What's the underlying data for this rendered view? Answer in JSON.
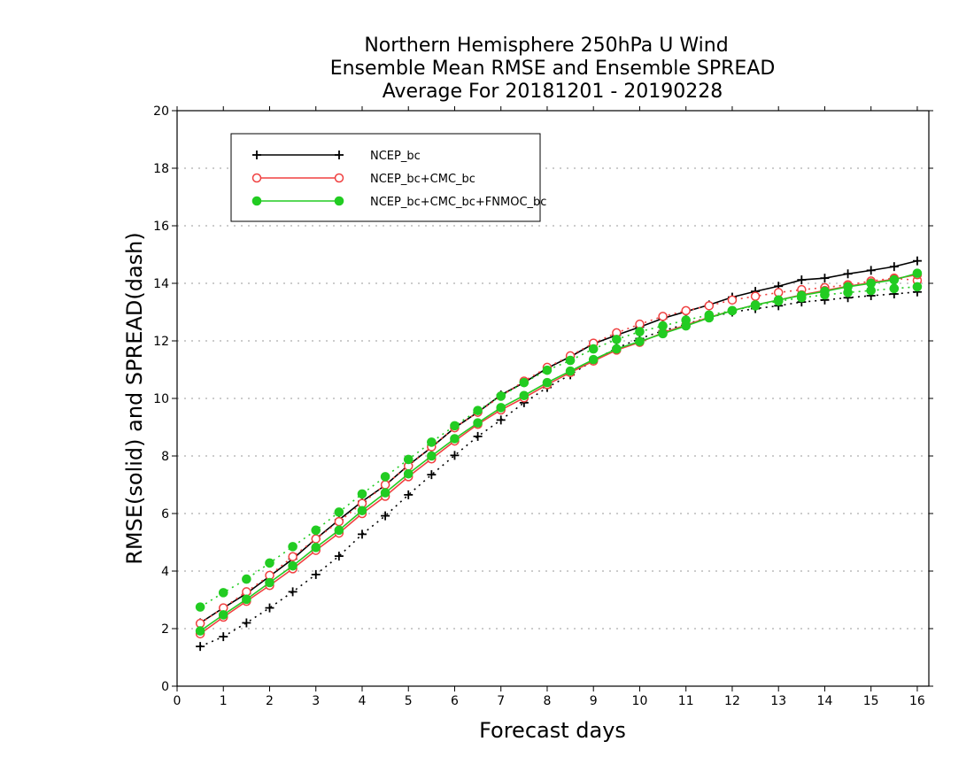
{
  "chart_data": {
    "type": "line",
    "title": "Northern Hemisphere 250hPa U Wind",
    "subtitle_lines": [
      "Ensemble Mean RMSE and Ensemble SPREAD",
      "Average For 20181201 - 20190228"
    ],
    "xlabel": "Forecast days",
    "ylabel": "RMSE(solid) and SPREAD(dash)",
    "xlim": [
      0,
      16.25
    ],
    "ylim": [
      0,
      20
    ],
    "x_ticks": [
      0,
      1,
      2,
      3,
      4,
      5,
      6,
      7,
      8,
      9,
      10,
      11,
      12,
      13,
      14,
      15,
      16
    ],
    "y_ticks": [
      0,
      2,
      4,
      6,
      8,
      10,
      12,
      14,
      16,
      18,
      20
    ],
    "grid": true,
    "legend_position": "top-left",
    "x": [
      0.5,
      1,
      1.5,
      2,
      2.5,
      3,
      3.5,
      4,
      4.5,
      5,
      5.5,
      6,
      6.5,
      7,
      7.5,
      8,
      8.5,
      9,
      9.5,
      10,
      10.5,
      11,
      11.5,
      12,
      12.5,
      13,
      13.5,
      14,
      14.5,
      15,
      15.5,
      16
    ],
    "series": [
      {
        "name": "NCEP_bc",
        "color": "#000000",
        "marker": "plus",
        "rmse": [
          2.2,
          2.72,
          3.22,
          3.82,
          4.42,
          5.12,
          5.78,
          6.42,
          6.98,
          7.68,
          8.3,
          8.98,
          9.52,
          10.12,
          10.55,
          11.05,
          11.45,
          11.9,
          12.2,
          12.48,
          12.78,
          13.02,
          13.25,
          13.52,
          13.72,
          13.9,
          14.12,
          14.18,
          14.33,
          14.45,
          14.58,
          14.78
        ],
        "spread": [
          1.38,
          1.72,
          2.2,
          2.72,
          3.28,
          3.88,
          4.52,
          5.28,
          5.92,
          6.65,
          7.35,
          8.02,
          8.68,
          9.25,
          9.85,
          10.38,
          10.82,
          11.32,
          11.75,
          12.08,
          12.35,
          12.58,
          12.82,
          13.0,
          13.12,
          13.22,
          13.35,
          13.42,
          13.5,
          13.57,
          13.63,
          13.7
        ]
      },
      {
        "name": "NCEP_bc+CMC_bc",
        "color": "#f04040",
        "marker": "open-circle",
        "rmse": [
          1.82,
          2.4,
          2.95,
          3.5,
          4.08,
          4.72,
          5.32,
          6.0,
          6.6,
          7.28,
          7.9,
          8.52,
          9.1,
          9.6,
          10.02,
          10.48,
          10.9,
          11.3,
          11.68,
          11.95,
          12.28,
          12.55,
          12.82,
          13.05,
          13.25,
          13.42,
          13.6,
          13.75,
          13.9,
          14.02,
          14.15,
          14.3
        ],
        "spread": [
          2.18,
          2.72,
          3.28,
          3.85,
          4.5,
          5.12,
          5.72,
          6.35,
          7.0,
          7.65,
          8.32,
          8.98,
          9.52,
          10.08,
          10.6,
          11.08,
          11.48,
          11.92,
          12.28,
          12.58,
          12.85,
          13.05,
          13.22,
          13.42,
          13.55,
          13.68,
          13.78,
          13.85,
          13.95,
          14.08,
          14.18,
          14.1
        ]
      },
      {
        "name": "NCEP_bc+CMC_bc+FNMOC_bc",
        "color": "#22cc22",
        "marker": "filled-circle",
        "rmse": [
          1.92,
          2.48,
          3.02,
          3.6,
          4.18,
          4.82,
          5.42,
          6.1,
          6.72,
          7.38,
          8.0,
          8.6,
          9.15,
          9.68,
          10.1,
          10.55,
          10.95,
          11.35,
          11.72,
          11.98,
          12.25,
          12.52,
          12.8,
          13.05,
          13.25,
          13.42,
          13.58,
          13.72,
          13.88,
          14.0,
          14.12,
          14.35
        ],
        "spread": [
          2.75,
          3.25,
          3.72,
          4.28,
          4.85,
          5.42,
          6.05,
          6.68,
          7.28,
          7.88,
          8.48,
          9.05,
          9.58,
          10.08,
          10.55,
          10.98,
          11.32,
          11.72,
          12.05,
          12.32,
          12.52,
          12.72,
          12.9,
          13.05,
          13.22,
          13.38,
          13.5,
          13.6,
          13.68,
          13.75,
          13.82,
          13.88
        ]
      }
    ]
  }
}
